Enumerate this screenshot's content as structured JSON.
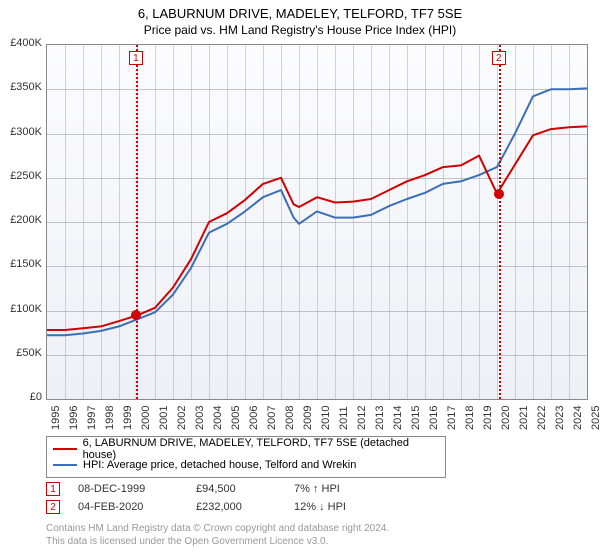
{
  "title": "6, LABURNUM DRIVE, MADELEY, TELFORD, TF7 5SE",
  "subtitle": "Price paid vs. HM Land Registry's House Price Index (HPI)",
  "chart": {
    "type": "line",
    "background_gradient_top": "#fcfcfe",
    "background_gradient_bottom": "#eef0f6",
    "grid_color": "#a6a6af",
    "border_color": "#888888",
    "ylim": [
      0,
      400000
    ],
    "ytick_step": 50000,
    "ytick_labels": [
      "£0",
      "£50K",
      "£100K",
      "£150K",
      "£200K",
      "£250K",
      "£300K",
      "£350K",
      "£400K"
    ],
    "xlim": [
      1995,
      2025
    ],
    "xtick_step": 1,
    "xtick_labels": [
      "1995",
      "1996",
      "1997",
      "1998",
      "1999",
      "2000",
      "2001",
      "2002",
      "2003",
      "2004",
      "2005",
      "2006",
      "2007",
      "2008",
      "2009",
      "2010",
      "2011",
      "2012",
      "2013",
      "2014",
      "2015",
      "2016",
      "2017",
      "2018",
      "2019",
      "2020",
      "2021",
      "2022",
      "2023",
      "2024",
      "2025"
    ],
    "label_fontsize": 11,
    "label_color": "#333333",
    "event_line_color": "#d00000",
    "event_line_style": "dotted",
    "series": [
      {
        "name": "property",
        "label": "6, LABURNUM DRIVE, MADELEY, TELFORD, TF7 5SE (detached house)",
        "color": "#d20000",
        "line_width": 2,
        "marker_color": "#d20000",
        "years": [
          1995,
          1996,
          1997,
          1998,
          1999,
          2000,
          2001,
          2002,
          2003,
          2004,
          2005,
          2006,
          2007,
          2008,
          2008.7,
          2009,
          2010,
          2011,
          2012,
          2013,
          2014,
          2015,
          2016,
          2017,
          2018,
          2019,
          2020,
          2021,
          2022,
          2023,
          2024,
          2025
        ],
        "values": [
          78000,
          78000,
          80000,
          82000,
          88000,
          94500,
          103000,
          126000,
          158000,
          200000,
          210000,
          225000,
          243000,
          250000,
          220000,
          217000,
          228000,
          222000,
          223000,
          226000,
          236000,
          246000,
          253000,
          262000,
          264000,
          275000,
          232000,
          265000,
          298000,
          305000,
          307000,
          308000
        ]
      },
      {
        "name": "hpi",
        "label": "HPI: Average price, detached house, Telford and Wrekin",
        "color": "#3b6fb6",
        "line_width": 2,
        "years": [
          1995,
          1996,
          1997,
          1998,
          1999,
          2000,
          2001,
          2002,
          2003,
          2004,
          2005,
          2006,
          2007,
          2008,
          2008.7,
          2009,
          2010,
          2011,
          2012,
          2013,
          2014,
          2015,
          2016,
          2017,
          2018,
          2019,
          2020,
          2021,
          2022,
          2023,
          2024,
          2025
        ],
        "values": [
          72000,
          72000,
          74000,
          77000,
          82000,
          90000,
          98000,
          118000,
          148000,
          188000,
          198000,
          212000,
          228000,
          236000,
          205000,
          198000,
          212000,
          205000,
          205000,
          208000,
          218000,
          226000,
          233000,
          243000,
          246000,
          253000,
          262000,
          300000,
          342000,
          350000,
          350000,
          351000
        ]
      }
    ],
    "events": [
      {
        "id": "1",
        "year": 1999.94,
        "value": 94500
      },
      {
        "id": "2",
        "year": 2020.1,
        "value": 232000
      }
    ]
  },
  "legend": {
    "items": [
      {
        "color": "#d20000",
        "label": "6, LABURNUM DRIVE, MADELEY, TELFORD, TF7 5SE (detached house)"
      },
      {
        "color": "#3b6fb6",
        "label": "HPI: Average price, detached house, Telford and Wrekin"
      }
    ]
  },
  "events_table": [
    {
      "id": "1",
      "date": "08-DEC-1999",
      "price": "£94,500",
      "delta": "7% ↑ HPI"
    },
    {
      "id": "2",
      "date": "04-FEB-2020",
      "price": "£232,000",
      "delta": "12% ↓ HPI"
    }
  ],
  "footer": {
    "line1": "Contains HM Land Registry data © Crown copyright and database right 2024.",
    "line2": "This data is licensed under the Open Government Licence v3.0."
  }
}
